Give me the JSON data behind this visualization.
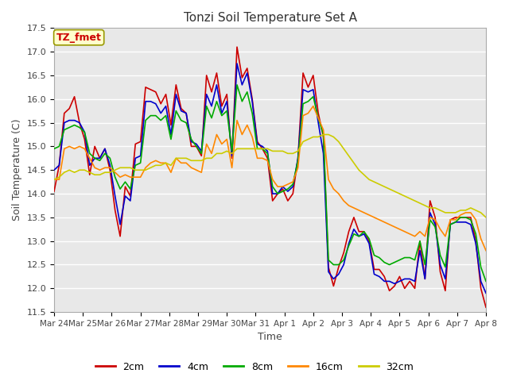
{
  "title": "Tonzi Soil Temperature Set A",
  "xlabel": "Time",
  "ylabel": "Soil Temperature (C)",
  "ylim": [
    11.5,
    17.5
  ],
  "yticks": [
    11.5,
    12.0,
    12.5,
    13.0,
    13.5,
    14.0,
    14.5,
    15.0,
    15.5,
    16.0,
    16.5,
    17.0,
    17.5
  ],
  "x_labels": [
    "Mar 24",
    "Mar 25",
    "Mar 26",
    "Mar 27",
    "Mar 28",
    "Mar 29",
    "Mar 30",
    "Mar 31",
    "Apr 1",
    "Apr 2",
    "Apr 3",
    "Apr 4",
    "Apr 5",
    "Apr 6",
    "Apr 7",
    "Apr 8"
  ],
  "colors": {
    "2cm": "#cc0000",
    "4cm": "#0000cc",
    "8cm": "#00aa00",
    "16cm": "#ff8800",
    "32cm": "#cccc00"
  },
  "plot_bg": "#e8e8e8",
  "fig_bg": "#ffffff",
  "grid_color": "#ffffff",
  "annotation_text": "TZ_fmet",
  "annotation_color": "#cc0000",
  "annotation_bg": "#ffffcc",
  "annotation_border": "#999900",
  "series": {
    "2cm": [
      14.05,
      14.6,
      15.7,
      15.8,
      16.05,
      15.5,
      15.15,
      14.4,
      15.0,
      14.75,
      14.95,
      14.5,
      13.65,
      13.1,
      14.15,
      13.95,
      15.05,
      15.1,
      16.25,
      16.2,
      16.15,
      15.9,
      16.1,
      15.45,
      16.3,
      15.8,
      15.7,
      15.0,
      15.0,
      14.8,
      16.5,
      16.15,
      16.55,
      15.85,
      16.1,
      14.75,
      17.1,
      16.45,
      16.65,
      16.0,
      15.1,
      14.95,
      14.75,
      13.85,
      14.0,
      14.1,
      13.85,
      14.0,
      14.75,
      16.55,
      16.25,
      16.5,
      15.7,
      15.2,
      12.45,
      12.05,
      12.45,
      12.75,
      13.2,
      13.5,
      13.2,
      13.2,
      13.0,
      12.4,
      12.4,
      12.25,
      11.95,
      12.05,
      12.25,
      12.0,
      12.15,
      12.0,
      13.0,
      12.2,
      13.85,
      13.5,
      12.35,
      11.95,
      13.45,
      13.5,
      13.5,
      13.5,
      13.5,
      13.0,
      12.0,
      11.6
    ],
    "4cm": [
      14.5,
      14.6,
      15.5,
      15.55,
      15.55,
      15.5,
      15.3,
      14.6,
      14.75,
      14.75,
      14.95,
      14.6,
      13.95,
      13.35,
      13.95,
      13.85,
      14.75,
      14.8,
      15.95,
      15.95,
      15.9,
      15.7,
      15.85,
      15.25,
      16.1,
      15.75,
      15.7,
      15.1,
      15.05,
      14.9,
      16.1,
      15.85,
      16.3,
      15.7,
      15.95,
      14.8,
      16.75,
      16.3,
      16.55,
      15.95,
      15.05,
      15.0,
      14.9,
      14.0,
      14.0,
      14.15,
      14.05,
      14.15,
      14.75,
      16.2,
      16.15,
      16.2,
      15.5,
      14.85,
      12.35,
      12.2,
      12.3,
      12.5,
      12.95,
      13.25,
      13.1,
      13.15,
      12.95,
      12.3,
      12.25,
      12.15,
      12.15,
      12.1,
      12.15,
      12.2,
      12.2,
      12.15,
      12.8,
      12.2,
      13.6,
      13.35,
      12.5,
      12.2,
      13.35,
      13.4,
      13.4,
      13.4,
      13.35,
      12.95,
      12.15,
      11.9
    ],
    "8cm": [
      14.95,
      15.0,
      15.35,
      15.4,
      15.45,
      15.4,
      15.3,
      14.85,
      14.75,
      14.7,
      14.85,
      14.75,
      14.35,
      14.1,
      14.25,
      14.1,
      14.6,
      14.65,
      15.55,
      15.65,
      15.65,
      15.55,
      15.65,
      15.15,
      15.75,
      15.55,
      15.5,
      15.15,
      15.0,
      14.85,
      15.85,
      15.6,
      15.95,
      15.65,
      15.75,
      14.9,
      16.3,
      15.95,
      16.15,
      15.7,
      14.95,
      14.95,
      14.85,
      14.15,
      14.0,
      14.05,
      14.1,
      14.2,
      14.7,
      15.9,
      15.95,
      16.05,
      15.6,
      15.25,
      12.6,
      12.5,
      12.5,
      12.6,
      12.9,
      13.15,
      13.1,
      13.2,
      13.05,
      12.7,
      12.65,
      12.55,
      12.5,
      12.55,
      12.6,
      12.65,
      12.65,
      12.6,
      13.0,
      12.5,
      13.45,
      13.3,
      12.7,
      12.45,
      13.35,
      13.4,
      13.5,
      13.5,
      13.45,
      13.15,
      12.45,
      12.15
    ],
    "16cm": [
      14.3,
      14.3,
      14.95,
      15.0,
      14.95,
      15.0,
      14.95,
      14.75,
      14.55,
      14.5,
      14.55,
      14.55,
      14.45,
      14.35,
      14.4,
      14.35,
      14.35,
      14.35,
      14.55,
      14.65,
      14.7,
      14.65,
      14.65,
      14.45,
      14.75,
      14.65,
      14.65,
      14.55,
      14.5,
      14.45,
      15.05,
      14.85,
      15.25,
      15.05,
      15.15,
      14.55,
      15.55,
      15.25,
      15.45,
      15.2,
      14.75,
      14.75,
      14.7,
      14.3,
      14.15,
      14.15,
      14.2,
      14.25,
      14.55,
      15.65,
      15.7,
      15.85,
      15.6,
      15.35,
      14.3,
      14.1,
      14.0,
      13.85,
      13.75,
      13.7,
      13.65,
      13.6,
      13.55,
      13.5,
      13.45,
      13.4,
      13.35,
      13.3,
      13.25,
      13.2,
      13.15,
      13.1,
      13.2,
      13.1,
      13.5,
      13.45,
      13.25,
      13.1,
      13.45,
      13.45,
      13.55,
      13.6,
      13.6,
      13.45,
      13.05,
      12.8
    ],
    "32cm": [
      14.3,
      14.35,
      14.45,
      14.5,
      14.45,
      14.5,
      14.5,
      14.45,
      14.4,
      14.4,
      14.45,
      14.45,
      14.5,
      14.55,
      14.55,
      14.55,
      14.5,
      14.5,
      14.5,
      14.55,
      14.6,
      14.6,
      14.65,
      14.6,
      14.75,
      14.75,
      14.75,
      14.7,
      14.7,
      14.7,
      14.75,
      14.75,
      14.85,
      14.85,
      14.9,
      14.85,
      14.95,
      14.95,
      14.95,
      14.95,
      14.95,
      14.95,
      14.95,
      14.9,
      14.9,
      14.9,
      14.85,
      14.85,
      14.9,
      15.1,
      15.15,
      15.2,
      15.2,
      15.25,
      15.25,
      15.2,
      15.1,
      14.95,
      14.8,
      14.65,
      14.5,
      14.4,
      14.3,
      14.25,
      14.2,
      14.15,
      14.1,
      14.05,
      14.0,
      13.95,
      13.9,
      13.85,
      13.8,
      13.75,
      13.7,
      13.7,
      13.65,
      13.6,
      13.6,
      13.6,
      13.65,
      13.65,
      13.7,
      13.65,
      13.6,
      13.5
    ]
  }
}
